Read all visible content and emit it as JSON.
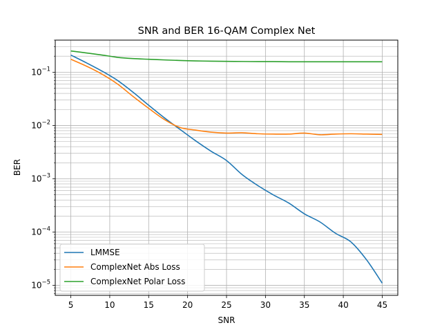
{
  "chart_data": {
    "type": "line",
    "title": "SNR and BER 16-QAM Complex Net",
    "xlabel": "SNR",
    "ylabel": "BER",
    "xlim": [
      3,
      47
    ],
    "ylim": [
      6.5e-06,
      0.4
    ],
    "yscale": "log",
    "grid": "both (major and minor)",
    "legend_position": "lower-left",
    "xticks": [
      5,
      10,
      15,
      20,
      25,
      30,
      35,
      40,
      45
    ],
    "yticks": [
      {
        "value": 1e-05,
        "base": "10",
        "exp": "−5"
      },
      {
        "value": 0.0001,
        "base": "10",
        "exp": "−4"
      },
      {
        "value": 0.001,
        "base": "10",
        "exp": "−3"
      },
      {
        "value": 0.01,
        "base": "10",
        "exp": "−2"
      },
      {
        "value": 0.1,
        "base": "10",
        "exp": "−1"
      }
    ],
    "x": [
      5,
      7,
      9,
      11,
      13,
      15,
      17,
      19,
      21,
      23,
      25,
      27,
      29,
      31,
      33,
      35,
      37,
      39,
      41,
      43,
      45
    ],
    "series": [
      {
        "name": "LMMSE",
        "color": "#1f77b4",
        "values": [
          0.21,
          0.15,
          0.105,
          0.07,
          0.042,
          0.024,
          0.014,
          0.0085,
          0.0052,
          0.0033,
          0.0022,
          0.0012,
          0.00075,
          0.0005,
          0.00035,
          0.00022,
          0.000155,
          9.5e-05,
          6.5e-05,
          3e-05,
          1.1e-05
        ]
      },
      {
        "name": "ComplexNet Abs Loss",
        "color": "#ff7f0e",
        "values": [
          0.175,
          0.13,
          0.092,
          0.06,
          0.035,
          0.021,
          0.013,
          0.0092,
          0.0082,
          0.0075,
          0.0072,
          0.0073,
          0.007,
          0.0069,
          0.0069,
          0.0072,
          0.0067,
          0.0069,
          0.007,
          0.0069,
          0.0068
        ]
      },
      {
        "name": "ComplexNet Polar Loss",
        "color": "#2ca02c",
        "values": [
          0.25,
          0.23,
          0.21,
          0.19,
          0.18,
          0.175,
          0.17,
          0.166,
          0.163,
          0.161,
          0.16,
          0.159,
          0.158,
          0.158,
          0.157,
          0.157,
          0.157,
          0.157,
          0.157,
          0.157,
          0.157
        ]
      }
    ]
  }
}
